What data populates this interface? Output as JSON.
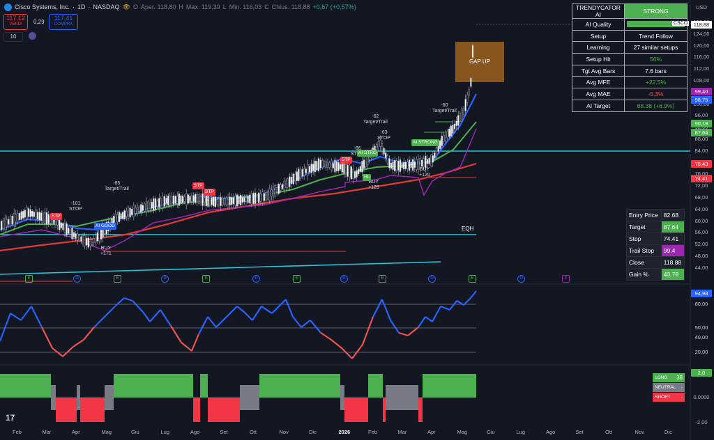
{
  "header": {
    "symbol_name": "Cisco Systems, Inc.",
    "timeframe": "1D",
    "exchange": "NASDAQ",
    "open_label": "O",
    "open": "Aper. 118,80",
    "high_label": "H",
    "high": "Max. 119,39",
    "low_label": "L",
    "low": "Min. 116,03",
    "close_label": "C",
    "close": "Chius. 118,88",
    "change": "+0,67 (+0,57%)"
  },
  "trade": {
    "sell_price": "117,12",
    "sell_label": "VENDI",
    "spread": "0,29",
    "buy_price": "117,41",
    "buy_label": "COMPRA",
    "lots": "10"
  },
  "currency": "USD",
  "ai_table": {
    "title": "TRENDYCATOR AI",
    "status": "STRONG",
    "rows": [
      {
        "k": "AI Quality",
        "v": ""
      },
      {
        "k": "Setup",
        "v": "Trend Follow"
      },
      {
        "k": "Learning",
        "v": "27 similar setups"
      },
      {
        "k": "Setup Hit",
        "v": "56%"
      },
      {
        "k": "Tgt Avg Bars",
        "v": "7.6 bars"
      },
      {
        "k": "Avg MFE",
        "v": "+22.5%"
      },
      {
        "k": "Avg MAE",
        "v": "-5.3%"
      },
      {
        "k": "AI Target",
        "v": "88.38 (+6.9%)"
      }
    ]
  },
  "trade_table": [
    {
      "k": "Entry Price",
      "v": "82.68"
    },
    {
      "k": "Target",
      "v": "87.64"
    },
    {
      "k": "Stop",
      "v": "74.41"
    },
    {
      "k": "Trail Stop",
      "v": "99.4"
    },
    {
      "k": "Close",
      "v": "118.88"
    },
    {
      "k": "Gain %",
      "v": "43.78"
    }
  ],
  "price_axis": [
    "128,00",
    "124,00",
    "120,00",
    "116,00",
    "112,00",
    "108,00",
    "104,00",
    "100,00",
    "96,00",
    "92,00",
    "88,00",
    "84,00",
    "80,00",
    "76,00",
    "72,00",
    "68,00",
    "64,00",
    "60,00",
    "56,00",
    "52,00",
    "48,00",
    "44,00"
  ],
  "price_tags": {
    "csco_label": "CSCO",
    "csco": "118,88",
    "p1": "99,40",
    "p2": "98,75",
    "p3": "90,18",
    "p4": "87,64",
    "p5": "78,43",
    "p6": "74,41"
  },
  "rsi_axis": {
    "v1": "94,98",
    "v2": "80,00",
    "v3": "50,00",
    "v4": "40,00",
    "v5": "20,00"
  },
  "bottom_axis": {
    "v1": "2,0",
    "v2": "0,0000",
    "v3": "-2,00"
  },
  "legend": {
    "long": "LONG",
    "long_count": "38",
    "neutral": "NEUTRAL",
    "neutral_count": "-",
    "short": "SHORT",
    "short_count": "-"
  },
  "months": [
    "Feb",
    "Mar",
    "Apr",
    "Mag",
    "Giu",
    "Lug",
    "Ago",
    "Set",
    "Ott",
    "Nov",
    "Dic",
    "2026",
    "Feb",
    "Mar",
    "Apr",
    "Mag",
    "Giu",
    "Lug",
    "Ago",
    "Set",
    "Ott",
    "Nov",
    "Dic"
  ],
  "annotations": {
    "gap": "GAP UP",
    "eqh": "EQH",
    "a1": "-101",
    "a1b": "STOP",
    "a2": "-85",
    "a2b": "Target/Trail",
    "a3": "BUY",
    "a3b": "+171",
    "a4": "-86",
    "a4b": "STOP",
    "a5": "-62",
    "a5b": "Target/Trail",
    "a6": "-63",
    "a6b": "STOP",
    "a7": "-60",
    "a7b": "Target/Trail",
    "a8": "BUY",
    "a8b": "+125",
    "a9": "BUY",
    "a9b": "+120"
  },
  "badges": {
    "stp": "STP",
    "ai_good": "AI GOOD",
    "ai_strong": "AI STRONG",
    "ai_strong2": "AI STRO",
    "hl": "HL"
  },
  "markers": {
    "e": "E",
    "d": "D"
  },
  "colors": {
    "up": "#26a69a",
    "down": "#ef5350",
    "red_box": "#f23645",
    "green": "#4caf50",
    "blue": "#2962ff",
    "purple": "#9c27b0",
    "cyan": "#00bcd4",
    "orange": "#8d5a1c"
  }
}
